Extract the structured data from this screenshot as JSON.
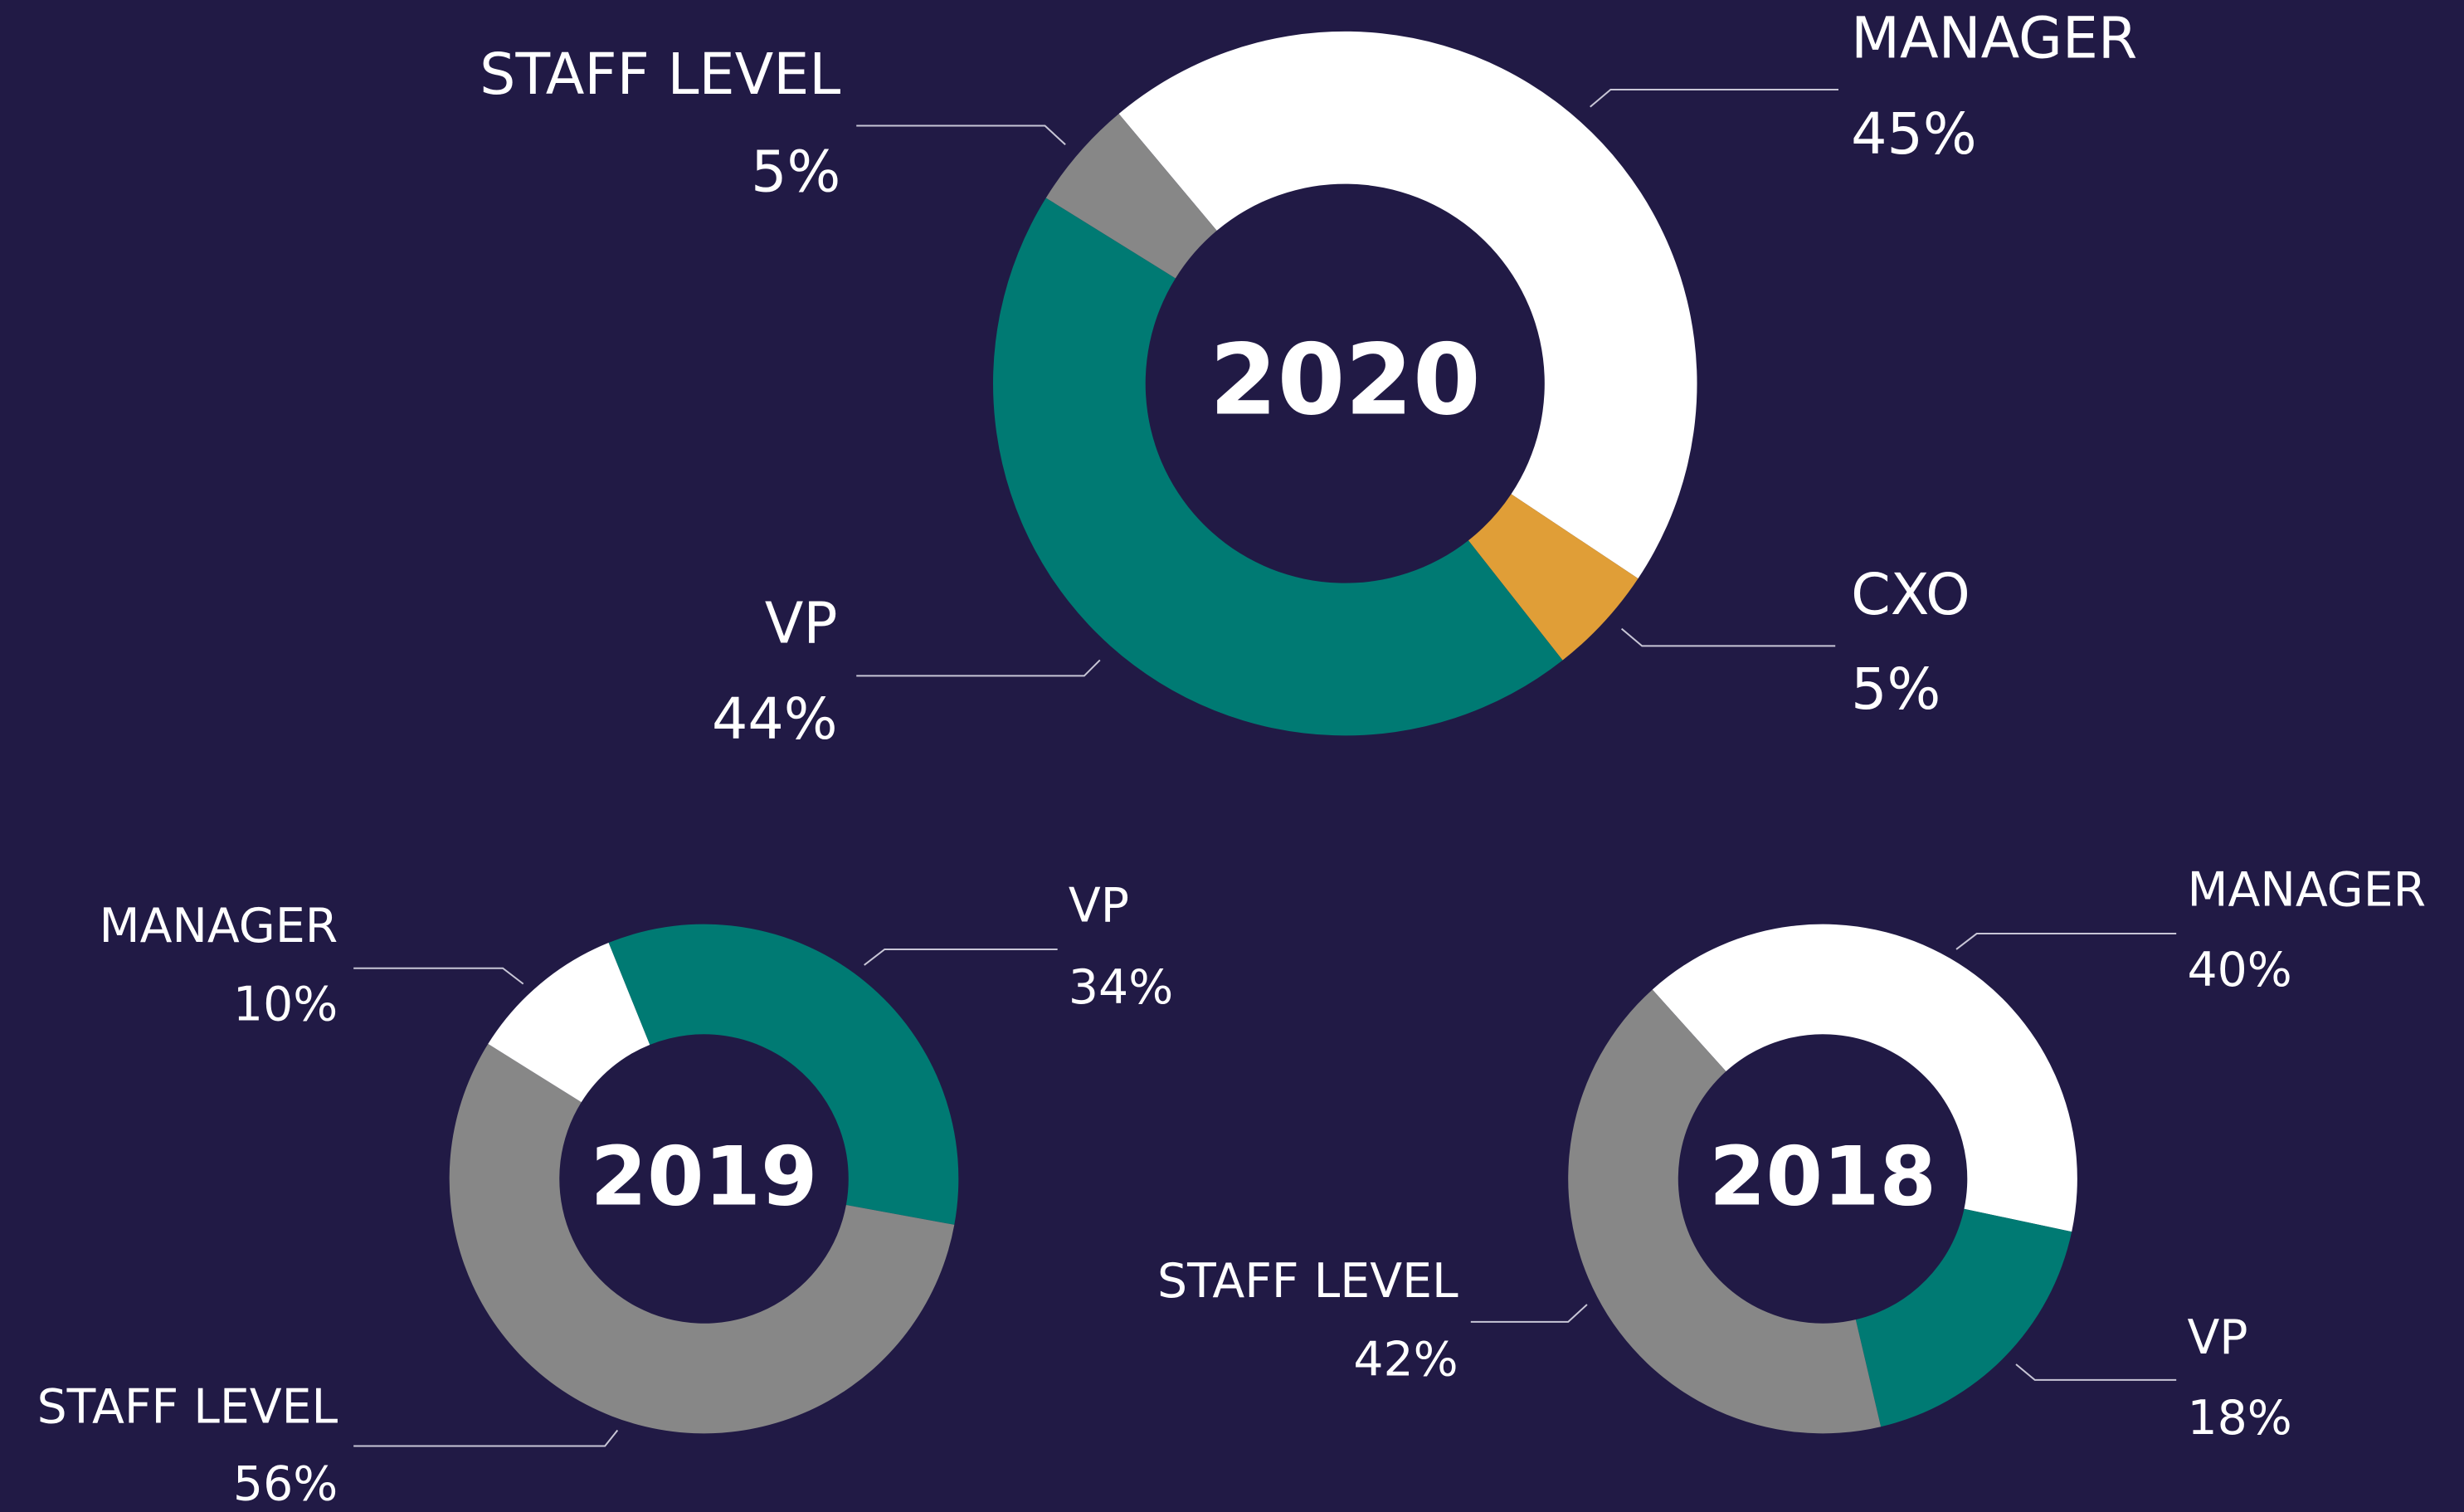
{
  "chart_data": [
    {
      "type": "pie",
      "title": "2020",
      "categories": [
        "MANAGER",
        "CXO",
        "VP",
        "STAFF LEVEL"
      ],
      "values": [
        45,
        5,
        44,
        5
      ],
      "value_labels": [
        "45%",
        "5%",
        "44%",
        "5%"
      ],
      "colors": [
        "#ffffff",
        "#e09e37",
        "#007a73",
        "#878787"
      ]
    },
    {
      "type": "pie",
      "title": "2019",
      "categories": [
        "VP",
        "STAFF LEVEL",
        "MANAGER"
      ],
      "values": [
        34,
        56,
        10
      ],
      "value_labels": [
        "34%",
        "56%",
        "10%"
      ],
      "colors": [
        "#007a73",
        "#878787",
        "#ffffff"
      ]
    },
    {
      "type": "pie",
      "title": "2018",
      "categories": [
        "MANAGER",
        "VP",
        "STAFF LEVEL"
      ],
      "values": [
        40,
        18,
        42
      ],
      "value_labels": [
        "40%",
        "18%",
        "42%"
      ],
      "colors": [
        "#ffffff",
        "#007a73",
        "#878787"
      ]
    }
  ]
}
